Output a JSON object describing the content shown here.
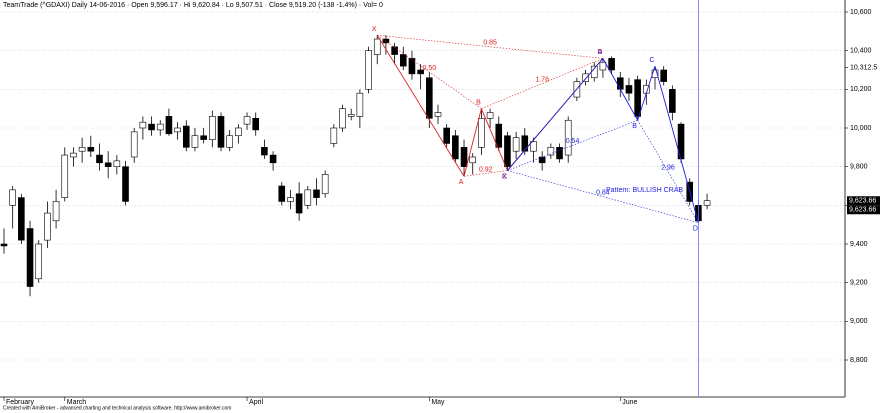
{
  "chart_data": {
    "type": "candlestick",
    "header": "TeamTrade (^GDAXI) Daily 14-06-2016 · Open 9,596.17 · Hi 9,620.84 · Lo 9,507.51 · Close 9,519.20 (-138 -1.4%) · Vol= 0",
    "footer": "Created with AmiBroker - advanced charting and technical analysis software. http://www.amibroker.com",
    "categories": [
      "February",
      null,
      null,
      null,
      null,
      null,
      null,
      "March",
      null,
      null,
      null,
      null,
      null,
      null,
      null,
      null,
      null,
      null,
      null,
      null,
      null,
      null,
      null,
      null,
      null,
      null,
      null,
      null,
      "April",
      null,
      null,
      null,
      null,
      null,
      null,
      null,
      null,
      null,
      null,
      null,
      null,
      null,
      null,
      null,
      null,
      null,
      null,
      null,
      null,
      "May",
      null,
      null,
      null,
      null,
      null,
      null,
      null,
      null,
      null,
      null,
      null,
      null,
      null,
      null,
      null,
      null,
      null,
      null,
      null,
      null,
      null,
      "June",
      null,
      null,
      null,
      null,
      null,
      null,
      null,
      null,
      null,
      null
    ],
    "open": [
      9400,
      9600,
      9640,
      9480,
      9220,
      9420,
      9520,
      9640,
      9850,
      9880,
      9900,
      9860,
      9820,
      9800,
      9800,
      9850,
      10000,
      10020,
      9990,
      10060,
      9980,
      10010,
      9900,
      9960,
      9940,
      10060,
      9900,
      9960,
      10020,
      10050,
      9900,
      9860,
      9700,
      9620,
      9660,
      9600,
      9680,
      9660,
      9920,
      10000,
      10060,
      10060,
      10200,
      10380,
      10460,
      10420,
      10380,
      10360,
      10300,
      10260,
      10060,
      10000,
      9960,
      9900,
      9820,
      9900,
      10050,
      10020,
      9960,
      9880,
      9960,
      9880,
      9850,
      9860,
      9900,
      9860,
      10160,
      10240,
      10260,
      10300,
      10360,
      10260,
      10220,
      10250,
      10180,
      10260,
      10300,
      10200,
      10020,
      9720,
      9600,
      9600
    ],
    "high": [
      9480,
      9700,
      9660,
      9520,
      9420,
      9620,
      9680,
      9900,
      9900,
      9950,
      9960,
      9920,
      9880,
      9860,
      9830,
      10000,
      10060,
      10060,
      10040,
      10100,
      10030,
      10040,
      10000,
      10000,
      10090,
      10080,
      9990,
      10020,
      10080,
      10080,
      9940,
      9880,
      9720,
      9680,
      9720,
      9700,
      9740,
      9780,
      10020,
      10120,
      10100,
      10200,
      10420,
      10480,
      10480,
      10440,
      10420,
      10400,
      10330,
      10290,
      10120,
      10020,
      9990,
      9940,
      9870,
      10100,
      10100,
      10060,
      9980,
      9980,
      10000,
      9950,
      9880,
      9920,
      9920,
      10060,
      10260,
      10300,
      10340,
      10360,
      10370,
      10290,
      10260,
      10270,
      10250,
      10320,
      10320,
      10220,
      10030,
      9740,
      9630,
      9660
    ],
    "low": [
      9350,
      9480,
      9400,
      9130,
      9200,
      9380,
      9480,
      9620,
      9800,
      9820,
      9850,
      9780,
      9740,
      9760,
      9600,
      9820,
      9940,
      9960,
      9960,
      9960,
      9940,
      9880,
      9880,
      9920,
      9900,
      9880,
      9880,
      9920,
      9990,
      9960,
      9840,
      9780,
      9600,
      9580,
      9520,
      9580,
      9600,
      9640,
      9900,
      9980,
      10040,
      10000,
      10180,
      10330,
      10380,
      10330,
      10300,
      10250,
      10200,
      10000,
      10020,
      9900,
      9820,
      9750,
      9760,
      9860,
      10000,
      9880,
      9780,
      9840,
      9860,
      9820,
      9780,
      9840,
      9820,
      9820,
      10140,
      10220,
      10240,
      10260,
      10280,
      10160,
      10140,
      10040,
      10120,
      10200,
      10220,
      10040,
      9820,
      9600,
      9510,
      9580
    ],
    "close": [
      9390,
      9680,
      9420,
      9180,
      9400,
      9560,
      9620,
      9860,
      9870,
      9900,
      9880,
      9820,
      9800,
      9830,
      9620,
      9980,
      10030,
      9990,
      10020,
      9970,
      10000,
      9900,
      9960,
      9940,
      10060,
      9900,
      9960,
      10000,
      10060,
      9990,
      9860,
      9820,
      9620,
      9640,
      9560,
      9680,
      9640,
      9760,
      10000,
      10100,
      10070,
      10180,
      10400,
      10460,
      10440,
      10380,
      10320,
      10280,
      10280,
      10050,
      10080,
      9920,
      9840,
      9800,
      9850,
      10050,
      10080,
      9900,
      9800,
      9950,
      9880,
      9930,
      9820,
      9900,
      9840,
      10040,
      10240,
      10280,
      10320,
      10340,
      10300,
      10200,
      10180,
      10060,
      10220,
      10300,
      10240,
      10080,
      9840,
      9620,
      9520,
      9624
    ],
    "ylim": [
      8619,
      10662
    ],
    "yticks": [
      {
        "value": 8800,
        "label": "8,800"
      },
      {
        "value": 9000,
        "label": "9,000"
      },
      {
        "value": 9200,
        "label": "9,200"
      },
      {
        "value": 9400,
        "label": "9,400"
      },
      {
        "value": 9600,
        "label": "9,600"
      },
      {
        "value": 9800,
        "label": "9,800"
      },
      {
        "value": 10000,
        "label": "10,000"
      },
      {
        "value": 10200,
        "label": "10,200"
      },
      {
        "value": 10400,
        "label": "10,400"
      },
      {
        "value": 10600,
        "label": "10,600"
      }
    ],
    "price_labels": [
      {
        "value": 10312.5,
        "label": "10,312.5"
      },
      {
        "value": 9623.66,
        "label": "9,623.66"
      },
      {
        "value": 9623.66,
        "label": "9,623.66"
      }
    ],
    "grid": true,
    "up_color": "#ffffff",
    "down_color": "#000000",
    "cursor_index": 80,
    "cursor_color": "#6a6aff",
    "patterns": [
      {
        "color": "#e02020",
        "points": [
          {
            "label": "X",
            "index": 43,
            "value": 10480
          },
          {
            "label": "A",
            "index": 53,
            "value": 9750
          },
          {
            "label": "B",
            "index": 55,
            "value": 10100
          },
          {
            "label": "C",
            "index": 58,
            "value": 9780
          },
          {
            "label": "D",
            "index": 69,
            "value": 10360
          }
        ],
        "ratios": [
          "0.85",
          "0.50",
          "1.76",
          "0.92"
        ]
      },
      {
        "color": "#2020e0",
        "points": [
          {
            "label": "X",
            "index": 58,
            "value": 9780
          },
          {
            "label": "A",
            "index": 69,
            "value": 10360
          },
          {
            "label": "B",
            "index": 73,
            "value": 10040
          },
          {
            "label": "C",
            "index": 75,
            "value": 10320
          },
          {
            "label": "D",
            "index": 80,
            "value": 9510
          }
        ],
        "ratios": [
          "0.84",
          "0.54",
          "2.96"
        ],
        "name": "Pattern: BULLISH CRAB"
      }
    ]
  }
}
